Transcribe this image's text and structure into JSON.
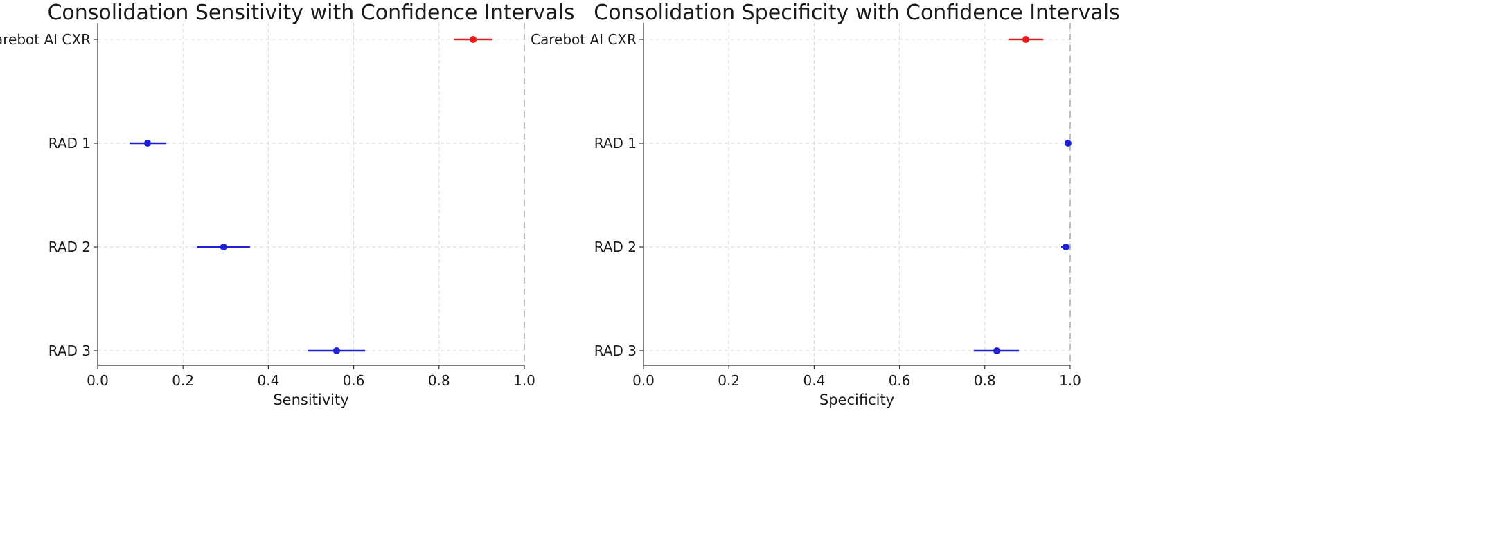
{
  "chart_data": [
    {
      "type": "scatter",
      "subtype": "forest-plot-horizontal-error-bars",
      "title": "Consolidation Sensitivity with Confidence Intervals",
      "xlabel": "Sensitivity",
      "ylabel": "",
      "xlim": [
        0.0,
        1.0
      ],
      "xticks": [
        "0.0",
        "0.2",
        "0.4",
        "0.6",
        "0.8",
        "1.0"
      ],
      "grid": true,
      "reference_line_x": 1.0,
      "categories": [
        "Carebot AI CXR",
        "RAD 1",
        "RAD 2",
        "RAD 3"
      ],
      "points": [
        {
          "label": "Carebot AI CXR",
          "value": 0.88,
          "ci": [
            0.835,
            0.925
          ],
          "color": "#e41a1c"
        },
        {
          "label": "RAD 1",
          "value": 0.117,
          "ci": [
            0.075,
            0.161
          ],
          "color": "#1f1fd6"
        },
        {
          "label": "RAD 2",
          "value": 0.295,
          "ci": [
            0.232,
            0.357
          ],
          "color": "#1f1fd6"
        },
        {
          "label": "RAD 3",
          "value": 0.56,
          "ci": [
            0.492,
            0.627
          ],
          "color": "#1f1fd6"
        }
      ]
    },
    {
      "type": "scatter",
      "subtype": "forest-plot-horizontal-error-bars",
      "title": "Consolidation Specificity with Confidence Intervals",
      "xlabel": "Specificity",
      "ylabel": "",
      "xlim": [
        0.0,
        1.0
      ],
      "xticks": [
        "0.0",
        "0.2",
        "0.4",
        "0.6",
        "0.8",
        "1.0"
      ],
      "grid": true,
      "reference_line_x": 1.0,
      "categories": [
        "Carebot AI CXR",
        "RAD 1",
        "RAD 2",
        "RAD 3"
      ],
      "points": [
        {
          "label": "Carebot AI CXR",
          "value": 0.896,
          "ci": [
            0.855,
            0.937
          ],
          "color": "#e41a1c"
        },
        {
          "label": "RAD 1",
          "value": 0.995,
          "ci": [
            0.988,
            1.0
          ],
          "color": "#1f1fd6"
        },
        {
          "label": "RAD 2",
          "value": 0.99,
          "ci": [
            0.979,
            0.999
          ],
          "color": "#1f1fd6"
        },
        {
          "label": "RAD 3",
          "value": 0.828,
          "ci": [
            0.774,
            0.88
          ],
          "color": "#1f1fd6"
        }
      ]
    }
  ]
}
